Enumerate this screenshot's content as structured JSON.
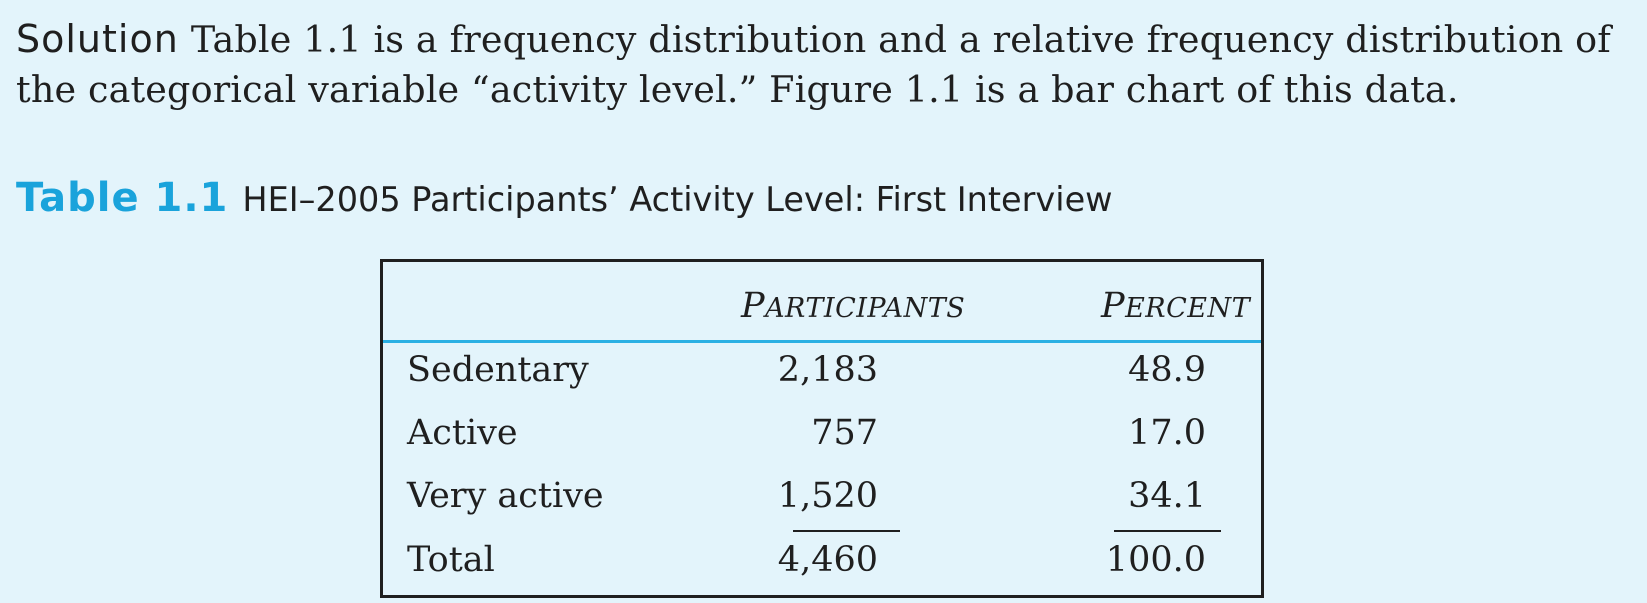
{
  "solution": {
    "label": "Solution",
    "text": "Table 1.1 is a frequency distribution and a relative frequency distribution of the categorical variable “activity level.” Figure 1.1 is a bar chart of this data."
  },
  "table": {
    "number": "Table 1.1",
    "title": "HEI–2005 Participants’ Activity Level: First Interview",
    "headers": {
      "participants_initial": "P",
      "participants_rest": "ARTICIPANTS",
      "percent_initial": "P",
      "percent_rest": "ERCENT"
    },
    "rows": [
      {
        "label": "Sedentary",
        "participants": "2,183",
        "percent": "48.9"
      },
      {
        "label": "Active",
        "participants": "757",
        "percent": "17.0"
      },
      {
        "label": "Very active",
        "participants": "1,520",
        "percent": "34.1"
      }
    ],
    "total": {
      "label": "Total",
      "participants": "4,460",
      "percent": "100.0"
    }
  }
}
